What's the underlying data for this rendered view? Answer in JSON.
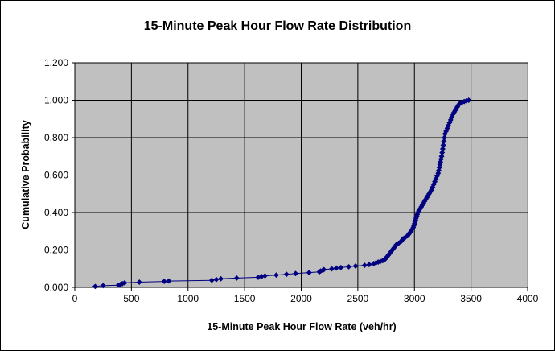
{
  "chart_data": {
    "type": "scatter",
    "title": "15-Minute Peak Hour Flow Rate Distribution",
    "xlabel": "15-Minute Peak Hour Flow Rate (veh/hr)",
    "ylabel": "Cumulative Probability",
    "xlim": [
      0,
      4000
    ],
    "ylim": [
      0,
      1.2
    ],
    "x_ticks": [
      "0",
      "500",
      "1000",
      "1500",
      "2000",
      "2500",
      "3000",
      "3500",
      "4000"
    ],
    "y_ticks": [
      "0.000",
      "0.200",
      "0.400",
      "0.600",
      "0.800",
      "1.000",
      "1.200"
    ],
    "grid": true,
    "legend": "none",
    "plot_background": "#c0c0c0",
    "series_color": "#000080",
    "marker": "diamond",
    "series": [
      {
        "points": [
          [
            180,
            0.005
          ],
          [
            250,
            0.009
          ],
          [
            385,
            0.012
          ],
          [
            405,
            0.016
          ],
          [
            420,
            0.02
          ],
          [
            440,
            0.024
          ],
          [
            570,
            0.028
          ],
          [
            790,
            0.032
          ],
          [
            830,
            0.034
          ],
          [
            1210,
            0.038
          ],
          [
            1250,
            0.042
          ],
          [
            1290,
            0.046
          ],
          [
            1430,
            0.05
          ],
          [
            1620,
            0.054
          ],
          [
            1650,
            0.058
          ],
          [
            1680,
            0.062
          ],
          [
            1780,
            0.066
          ],
          [
            1870,
            0.07
          ],
          [
            1950,
            0.074
          ],
          [
            2070,
            0.079
          ],
          [
            2160,
            0.083
          ],
          [
            2170,
            0.087
          ],
          [
            2190,
            0.091
          ],
          [
            2200,
            0.095
          ],
          [
            2270,
            0.099
          ],
          [
            2310,
            0.103
          ],
          [
            2350,
            0.106
          ],
          [
            2420,
            0.11
          ],
          [
            2480,
            0.114
          ],
          [
            2560,
            0.118
          ],
          [
            2600,
            0.122
          ],
          [
            2640,
            0.127
          ],
          [
            2660,
            0.131
          ],
          [
            2680,
            0.135
          ],
          [
            2700,
            0.139
          ],
          [
            2720,
            0.143
          ],
          [
            2740,
            0.15
          ],
          [
            2750,
            0.157
          ],
          [
            2760,
            0.165
          ],
          [
            2770,
            0.172
          ],
          [
            2780,
            0.18
          ],
          [
            2790,
            0.188
          ],
          [
            2800,
            0.196
          ],
          [
            2810,
            0.204
          ],
          [
            2820,
            0.212
          ],
          [
            2830,
            0.22
          ],
          [
            2840,
            0.228
          ],
          [
            2860,
            0.236
          ],
          [
            2880,
            0.244
          ],
          [
            2890,
            0.252
          ],
          [
            2900,
            0.26
          ],
          [
            2920,
            0.268
          ],
          [
            2940,
            0.276
          ],
          [
            2950,
            0.284
          ],
          [
            2960,
            0.292
          ],
          [
            2970,
            0.3
          ],
          [
            2980,
            0.31
          ],
          [
            2990,
            0.32
          ],
          [
            2995,
            0.33
          ],
          [
            3000,
            0.34
          ],
          [
            3005,
            0.35
          ],
          [
            3010,
            0.36
          ],
          [
            3015,
            0.37
          ],
          [
            3020,
            0.38
          ],
          [
            3025,
            0.39
          ],
          [
            3030,
            0.4
          ],
          [
            3040,
            0.41
          ],
          [
            3050,
            0.42
          ],
          [
            3060,
            0.43
          ],
          [
            3070,
            0.44
          ],
          [
            3080,
            0.45
          ],
          [
            3090,
            0.46
          ],
          [
            3100,
            0.47
          ],
          [
            3110,
            0.48
          ],
          [
            3120,
            0.49
          ],
          [
            3130,
            0.5
          ],
          [
            3140,
            0.51
          ],
          [
            3150,
            0.52
          ],
          [
            3160,
            0.535
          ],
          [
            3170,
            0.55
          ],
          [
            3180,
            0.565
          ],
          [
            3190,
            0.58
          ],
          [
            3200,
            0.595
          ],
          [
            3210,
            0.61
          ],
          [
            3215,
            0.625
          ],
          [
            3220,
            0.64
          ],
          [
            3225,
            0.655
          ],
          [
            3230,
            0.67
          ],
          [
            3235,
            0.685
          ],
          [
            3240,
            0.7
          ],
          [
            3245,
            0.72
          ],
          [
            3250,
            0.74
          ],
          [
            3255,
            0.76
          ],
          [
            3260,
            0.78
          ],
          [
            3265,
            0.8
          ],
          [
            3270,
            0.82
          ],
          [
            3280,
            0.835
          ],
          [
            3290,
            0.85
          ],
          [
            3300,
            0.865
          ],
          [
            3310,
            0.88
          ],
          [
            3320,
            0.895
          ],
          [
            3330,
            0.91
          ],
          [
            3340,
            0.925
          ],
          [
            3350,
            0.935
          ],
          [
            3360,
            0.945
          ],
          [
            3370,
            0.955
          ],
          [
            3380,
            0.965
          ],
          [
            3390,
            0.975
          ],
          [
            3400,
            0.982
          ],
          [
            3420,
            0.988
          ],
          [
            3440,
            0.993
          ],
          [
            3460,
            0.997
          ],
          [
            3480,
            1.0
          ]
        ]
      }
    ]
  }
}
